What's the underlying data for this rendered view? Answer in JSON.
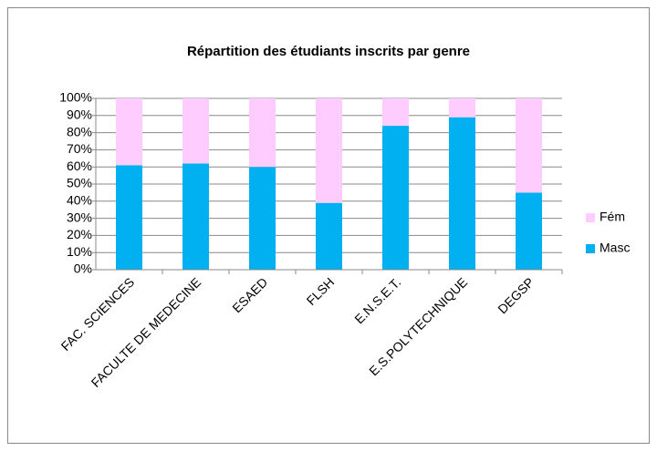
{
  "chart_data": {
    "type": "stacked_bar_100",
    "title": "Répartition des étudiants inscrits par genre",
    "categories": [
      "FAC. SCIENCES",
      "FACULTE DE MEDECINE",
      "ESAED",
      "FLSH",
      "E.N.S.E.T.",
      "E.S.POLYTECHNIQUE",
      "DEGSP"
    ],
    "series": [
      {
        "name": "Masc",
        "color": "#00b0f0",
        "values": [
          61,
          62,
          60,
          39,
          84,
          89,
          45
        ]
      },
      {
        "name": "Fém",
        "color": "#ffccff",
        "values": [
          39,
          38,
          40,
          61,
          16,
          11,
          55
        ]
      }
    ],
    "ylim": [
      0,
      100
    ],
    "yticks": [
      {
        "value": 0,
        "label": "0%"
      },
      {
        "value": 10,
        "label": "10%"
      },
      {
        "value": 20,
        "label": "20%"
      },
      {
        "value": 30,
        "label": "30%"
      },
      {
        "value": 40,
        "label": "40%"
      },
      {
        "value": 50,
        "label": "50%"
      },
      {
        "value": 60,
        "label": "60%"
      },
      {
        "value": 70,
        "label": "70%"
      },
      {
        "value": 80,
        "label": "80%"
      },
      {
        "value": 90,
        "label": "90%"
      },
      {
        "value": 100,
        "label": "100%"
      }
    ],
    "grid": true,
    "legend": "right"
  }
}
